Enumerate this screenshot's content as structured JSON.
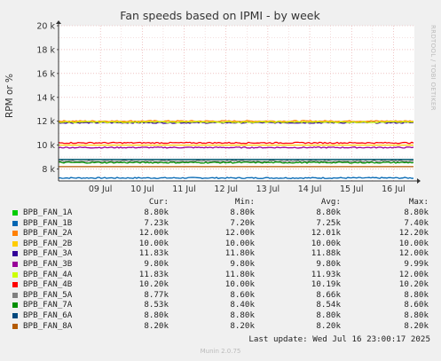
{
  "chart_data": {
    "type": "line",
    "title": "Fan speeds based on IPMI - by week",
    "ylabel": "RPM or %",
    "side_label": "RRDTOOL / TOBI OETIKER",
    "ylim": [
      7000,
      20000
    ],
    "y_ticks": [
      8000,
      10000,
      12000,
      14000,
      16000,
      18000,
      20000
    ],
    "y_tick_labels": [
      "8 k",
      "10 k",
      "12 k",
      "14 k",
      "16 k",
      "18 k",
      "20 k"
    ],
    "x_tick_labels": [
      "09 Jul",
      "10 Jul",
      "11 Jul",
      "12 Jul",
      "13 Jul",
      "14 Jul",
      "15 Jul",
      "16 Jul"
    ],
    "legend_columns": [
      "Cur:",
      "Min:",
      "Avg:",
      "Max:"
    ],
    "series": [
      {
        "name": "BPB_FAN_1A",
        "color": "#00cc00",
        "cur": "8.80k",
        "min": "8.80k",
        "avg": "8.80k",
        "max": "8.80k",
        "level": 8800
      },
      {
        "name": "BPB_FAN_1B",
        "color": "#0066b3",
        "cur": "7.23k",
        "min": "7.20k",
        "avg": "7.25k",
        "max": "7.40k",
        "level": 7250
      },
      {
        "name": "BPB_FAN_2A",
        "color": "#ff8000",
        "cur": "12.00k",
        "min": "12.00k",
        "avg": "12.01k",
        "max": "12.20k",
        "level": 12010
      },
      {
        "name": "BPB_FAN_2B",
        "color": "#ffcc00",
        "cur": "10.00k",
        "min": "10.00k",
        "avg": "10.00k",
        "max": "10.00k",
        "level": 10000
      },
      {
        "name": "BPB_FAN_3A",
        "color": "#330099",
        "cur": "11.83k",
        "min": "11.80k",
        "avg": "11.88k",
        "max": "12.00k",
        "level": 11880
      },
      {
        "name": "BPB_FAN_3B",
        "color": "#990099",
        "cur": "9.80k",
        "min": "9.80k",
        "avg": "9.80k",
        "max": "9.99k",
        "level": 9800
      },
      {
        "name": "BPB_FAN_4A",
        "color": "#ccff00",
        "cur": "11.83k",
        "min": "11.80k",
        "avg": "11.93k",
        "max": "12.00k",
        "level": 11930
      },
      {
        "name": "BPB_FAN_4B",
        "color": "#ff0000",
        "cur": "10.20k",
        "min": "10.00k",
        "avg": "10.19k",
        "max": "10.20k",
        "level": 10190
      },
      {
        "name": "BPB_FAN_5A",
        "color": "#808080",
        "cur": "8.77k",
        "min": "8.60k",
        "avg": "8.66k",
        "max": "8.80k",
        "level": 8660
      },
      {
        "name": "BPB_FAN_7A",
        "color": "#008f00",
        "cur": "8.53k",
        "min": "8.40k",
        "avg": "8.54k",
        "max": "8.60k",
        "level": 8540
      },
      {
        "name": "BPB_FAN_6A",
        "color": "#00487d",
        "cur": "8.80k",
        "min": "8.80k",
        "avg": "8.80k",
        "max": "8.80k",
        "level": 8800
      },
      {
        "name": "BPB_FAN_8A",
        "color": "#b35a00",
        "cur": "8.20k",
        "min": "8.20k",
        "avg": "8.20k",
        "max": "8.20k",
        "level": 8200
      }
    ]
  },
  "footer": {
    "last_update": "Last update: Wed Jul 16 23:00:17 2025",
    "munin_version": "Munin 2.0.75"
  }
}
